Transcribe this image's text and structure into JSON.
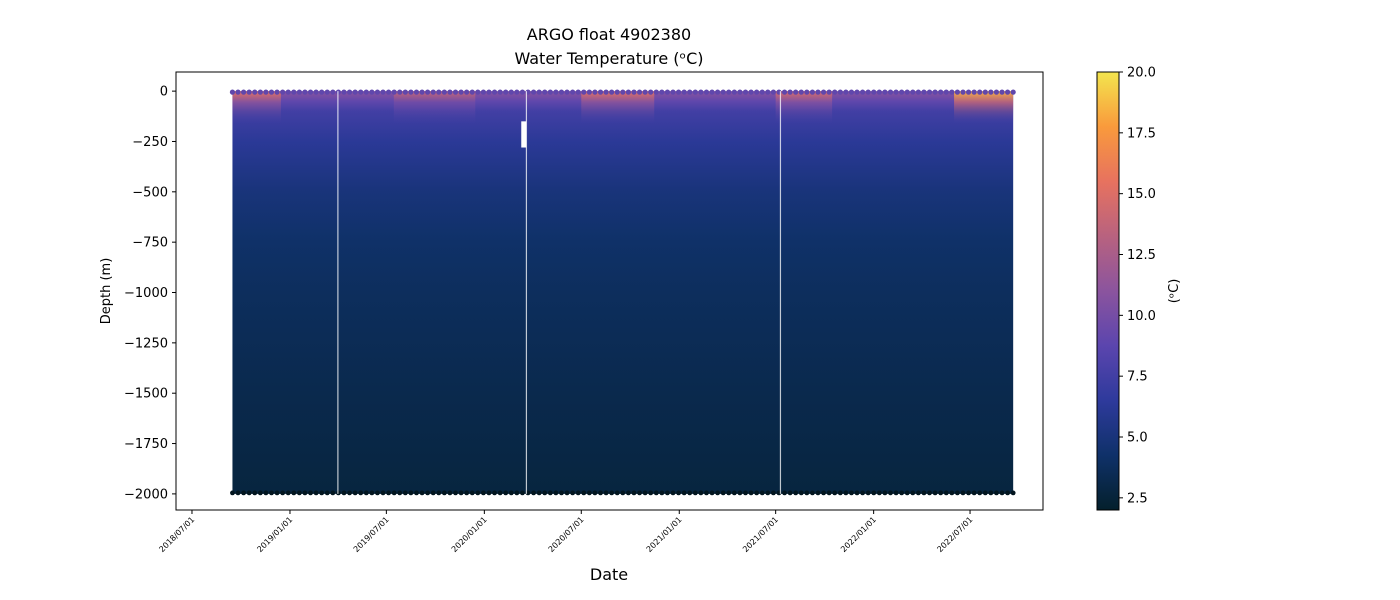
{
  "chart_data": {
    "type": "heatmap",
    "title": "ARGO float 4902380",
    "subtitle": "Water Temperature (ᵒC)",
    "xlabel": "Date",
    "ylabel": "Depth (m)",
    "colorbar_label": "(ᵒC)",
    "x_range": [
      "2018-06-01",
      "2022-11-15"
    ],
    "y_range": [
      -2080,
      95
    ],
    "data_x_range": [
      "2018-09-15",
      "2022-09-20"
    ],
    "depth_max": -2000,
    "x_ticks": [
      "2018/07/01",
      "2019/01/01",
      "2019/07/01",
      "2020/01/01",
      "2020/07/01",
      "2021/01/01",
      "2021/07/01",
      "2022/01/01",
      "2022/07/01"
    ],
    "y_ticks": [
      0,
      -250,
      -500,
      -750,
      -1000,
      -1250,
      -1500,
      -1750,
      -2000
    ],
    "y_tick_labels": [
      "0",
      "−250",
      "−500",
      "−750",
      "−1000",
      "−1250",
      "−1500",
      "−1750",
      "−2000"
    ],
    "colorbar_range": [
      2.0,
      20.0
    ],
    "colorbar_ticks": [
      "2.5",
      "5.0",
      "7.5",
      "10.0",
      "12.5",
      "15.0",
      "17.5",
      "20.0"
    ],
    "colormap": "thermal",
    "colormap_stops": [
      "#04202c",
      "#0f3169",
      "#2e3a9c",
      "#5b45ae",
      "#8b549e",
      "#b8627f",
      "#e7725f",
      "#f99a3c",
      "#f3e54e"
    ],
    "temperature_profile": [
      {
        "depth": 0,
        "temp": 11.0
      },
      {
        "depth": -50,
        "temp": 9.0
      },
      {
        "depth": -100,
        "temp": 7.5
      },
      {
        "depth": -250,
        "temp": 6.3
      },
      {
        "depth": -500,
        "temp": 5.0
      },
      {
        "depth": -750,
        "temp": 4.2
      },
      {
        "depth": -1000,
        "temp": 3.8
      },
      {
        "depth": -1500,
        "temp": 3.2
      },
      {
        "depth": -2000,
        "temp": 2.7
      }
    ],
    "surface_warm_periods": [
      {
        "start": "2018-09-15",
        "end": "2018-12-15",
        "surface_temp": 15.5
      },
      {
        "start": "2019-07-15",
        "end": "2019-12-15",
        "surface_temp": 14.0
      },
      {
        "start": "2020-07-01",
        "end": "2020-11-15",
        "surface_temp": 15.5
      },
      {
        "start": "2021-07-01",
        "end": "2021-10-15",
        "surface_temp": 15.0
      },
      {
        "start": "2022-06-01",
        "end": "2022-09-20",
        "surface_temp": 18.5
      }
    ],
    "gaps": [
      {
        "date": "2019-04-01"
      },
      {
        "date": "2020-03-20"
      },
      {
        "date": "2021-07-10"
      }
    ],
    "missing_block": {
      "date": "2020-03-15",
      "depth_top": -150,
      "depth_bottom": -280
    }
  }
}
